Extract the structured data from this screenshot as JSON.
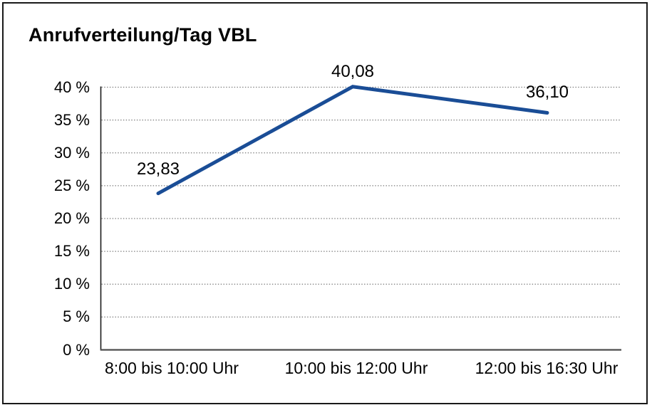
{
  "chart_data": {
    "type": "line",
    "title": "Anrufverteilung/Tag VBL",
    "categories": [
      "8:00 bis 10:00 Uhr",
      "10:00 bis 12:00 Uhr",
      "12:00 bis 16:30 Uhr"
    ],
    "values": [
      23.83,
      40.08,
      36.1
    ],
    "value_labels": [
      "23,83",
      "40,08",
      "36,10"
    ],
    "ylim": [
      0,
      40
    ],
    "y_tick_step": 5,
    "y_tick_labels": [
      "0 %",
      "5 %",
      "10 %",
      "15 %",
      "20 %",
      "25 %",
      "30 %",
      "35 %",
      "40 %"
    ],
    "xlabel": "",
    "ylabel": "",
    "grid": "horizontal-dotted",
    "legend_position": "none"
  },
  "colors": {
    "line": "#1a4d96",
    "grid": "#787878",
    "axis_y": "#1a1a1a",
    "axis_x": "#4d4d4d",
    "text": "#000000",
    "frame_border": "#1a1a1a",
    "background": "#ffffff"
  }
}
